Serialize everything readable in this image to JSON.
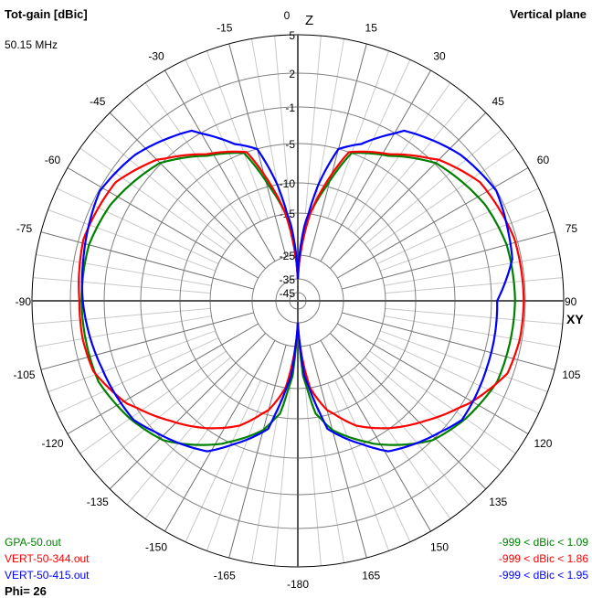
{
  "header": {
    "title": "Tot-gain [dBic]",
    "frequency": "50.15 MHz",
    "plane": "Vertical plane",
    "phi": "Phi= 26"
  },
  "chart_data": {
    "type": "polar",
    "title": "Tot-gain [dBic]",
    "axis_labels": {
      "top": "Z",
      "right": "XY"
    },
    "radial_ticks": [
      5,
      2,
      -1,
      -5,
      -10,
      -15,
      -25,
      -35,
      -45
    ],
    "angle_ticks": [
      0,
      15,
      30,
      45,
      60,
      75,
      90,
      105,
      120,
      135,
      150,
      165,
      -180,
      -165,
      -150,
      -135,
      -120,
      -105,
      -90,
      -75,
      -60,
      -45,
      -30,
      -15
    ],
    "grid": true,
    "series": [
      {
        "name": "GPA-50.out",
        "range": "-999 < dBic < 1.09",
        "color": "#008000",
        "right": {
          "angles": [
            0,
            3,
            8,
            14,
            20,
            32,
            45,
            63,
            75,
            90,
            112,
            125,
            136,
            152,
            165,
            171,
            176,
            180
          ],
          "gain": [
            -35,
            -25,
            -15,
            -10,
            -5,
            -3.5,
            -0.9,
            0.5,
            1.0,
            1.09,
            0.9,
            0,
            -1,
            -4.5,
            -8,
            -10.6,
            -18,
            -35
          ]
        },
        "left": {
          "angles": [
            0,
            3,
            8,
            14,
            20,
            32,
            45,
            63,
            75,
            90,
            112,
            125,
            136,
            152,
            165,
            171,
            176,
            180
          ],
          "gain": [
            -35,
            -25,
            -15,
            -10,
            -5,
            -3.5,
            -0.9,
            0.5,
            1.0,
            1.0,
            0.9,
            0,
            -1,
            -4.5,
            -8,
            -10.6,
            -18,
            -35
          ]
        }
      },
      {
        "name": "VERT-50-344.out",
        "range": "-999 < dBic < 1.86",
        "color": "#ff0000",
        "right": {
          "angles": [
            0,
            3,
            8,
            13,
            19,
            32,
            45,
            57,
            74,
            90,
            100,
            109,
            121,
            133,
            144,
            155,
            165,
            172,
            177,
            180
          ],
          "gain": [
            -35,
            -25,
            -15,
            -10,
            -5,
            -3.3,
            -0.5,
            1.1,
            1.8,
            1.86,
            1.8,
            1.5,
            -0.5,
            -3,
            -5,
            -7.5,
            -10.8,
            -15,
            -25,
            -35
          ]
        },
        "left": {
          "angles": [
            0,
            3,
            8,
            13,
            19,
            32,
            45,
            57,
            74,
            90,
            100,
            109,
            121,
            133,
            144,
            155,
            165,
            172,
            177,
            180
          ],
          "gain": [
            -35,
            -25,
            -15,
            -10,
            -5,
            -3.3,
            -0.5,
            1.1,
            1.6,
            1.2,
            1.2,
            1.0,
            -0.5,
            -3,
            -5,
            -7.5,
            -10.8,
            -15,
            -25,
            -35
          ]
        }
      },
      {
        "name": "VERT-50-415.out",
        "range": "-999 < dBic < 1.95",
        "color": "#0000ff",
        "right": {
          "angles": [
            0,
            2,
            5,
            7,
            10,
            15,
            22,
            32,
            48,
            61,
            71,
            79,
            90,
            109,
            126,
            149,
            167,
            175,
            180
          ],
          "gain": [
            -35,
            -25,
            -18,
            -15,
            -10,
            -5,
            -3.7,
            -0.4,
            1.2,
            1.95,
            1.5,
            1.2,
            -0.5,
            -0.4,
            -0.2,
            -3,
            -8.3,
            -18,
            -35
          ]
        },
        "left": {
          "angles": [
            0,
            2,
            5,
            7,
            10,
            15,
            22,
            32,
            48,
            61,
            71,
            79,
            90,
            109,
            126,
            149,
            167,
            175,
            180
          ],
          "gain": [
            -35,
            -25,
            -18,
            -15,
            -10,
            -5,
            -3.7,
            -0.4,
            1.2,
            1.9,
            1.5,
            1.2,
            0.9,
            0.2,
            -0.2,
            -3,
            -8.3,
            -18,
            -35
          ]
        }
      }
    ]
  }
}
